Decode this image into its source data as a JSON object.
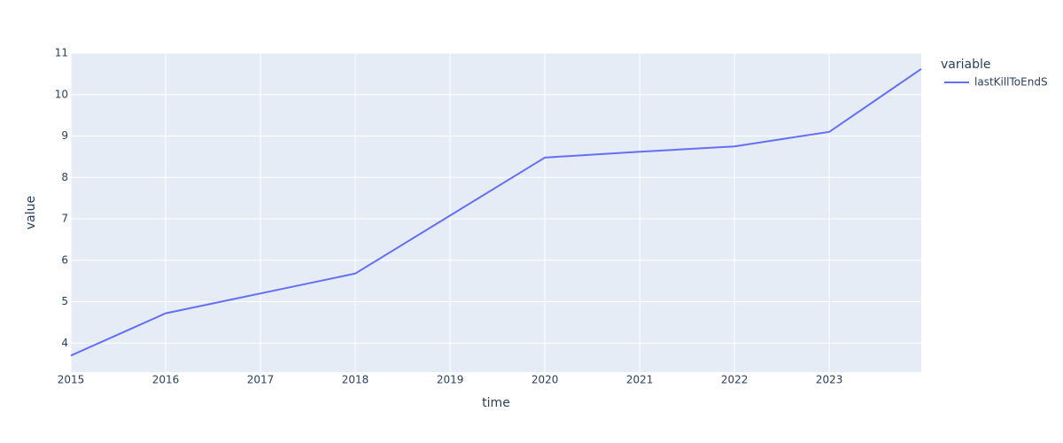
{
  "chart_data": {
    "type": "line",
    "x_title": "time",
    "y_title": "value",
    "legend_title": "variable",
    "x": [
      2015,
      2016,
      2017,
      2018,
      2019,
      2020,
      2021,
      2022,
      2023,
      2023.97
    ],
    "series": [
      {
        "name": "lastKillToEndS",
        "color": "#636efa",
        "values": [
          3.7,
          4.72,
          5.2,
          5.68,
          7.08,
          8.48,
          8.62,
          8.75,
          9.1,
          10.62
        ]
      }
    ],
    "xlim": [
      2015,
      2023.97
    ],
    "xticks": [
      2015,
      2016,
      2017,
      2018,
      2019,
      2020,
      2021,
      2022,
      2023
    ],
    "ylim": [
      3.3,
      11
    ],
    "yticks": [
      4,
      5,
      6,
      7,
      8,
      9,
      10,
      11
    ],
    "grid": true
  }
}
